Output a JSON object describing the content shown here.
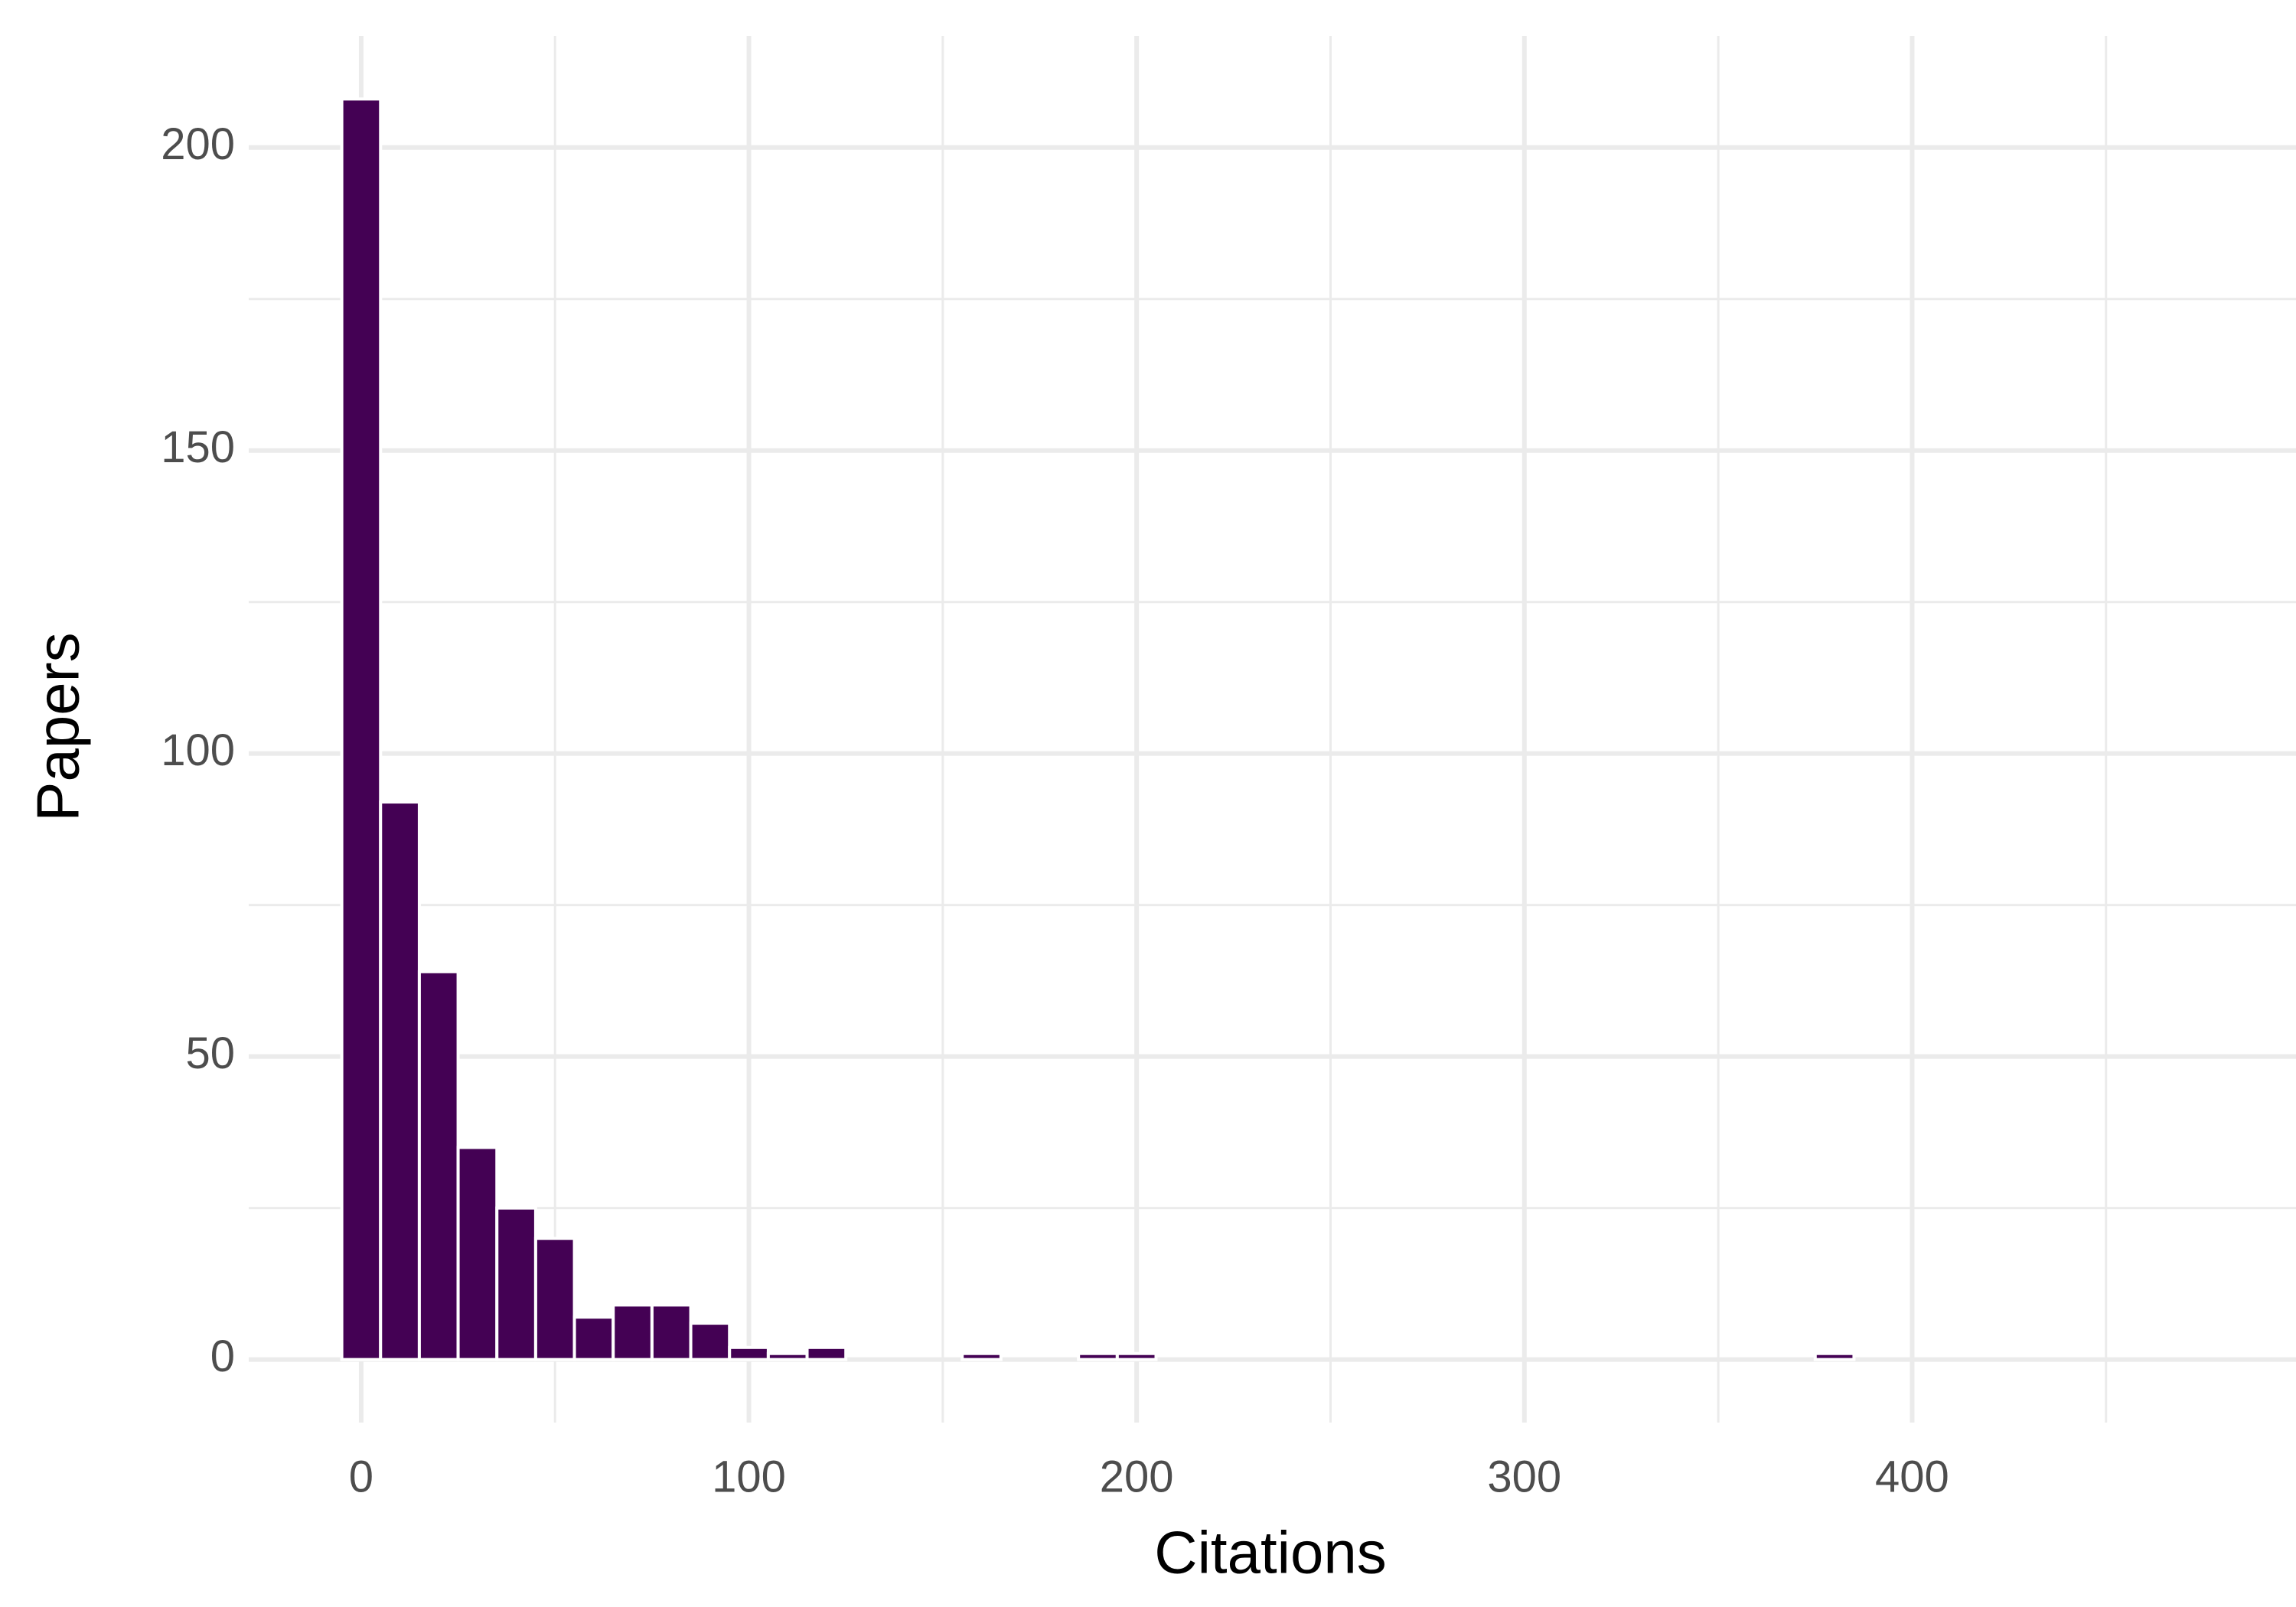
{
  "chart_data": {
    "type": "histogram",
    "x_label": "Citations",
    "y_label": "Papers",
    "bins": [
      -5,
      5,
      15,
      25,
      35,
      45,
      55,
      65,
      75,
      85,
      95,
      105,
      115,
      125,
      135,
      145,
      155,
      165,
      175,
      185,
      195,
      205,
      215,
      225,
      235,
      245,
      255,
      265,
      275,
      285,
      295,
      305,
      315,
      325,
      335,
      345,
      355,
      365,
      375,
      385,
      395,
      405,
      415,
      425,
      435,
      445,
      455,
      465,
      475
    ],
    "counts": [
      208,
      92,
      64,
      35,
      25,
      20,
      7,
      9,
      9,
      6,
      2,
      1,
      2,
      0,
      0,
      0,
      1,
      0,
      0,
      1,
      1,
      0,
      0,
      0,
      0,
      0,
      0,
      0,
      0,
      0,
      0,
      0,
      0,
      0,
      0,
      0,
      0,
      0,
      1,
      0,
      0,
      0,
      0,
      0,
      0,
      0,
      0,
      0
    ],
    "color": "#440154",
    "xlim": [
      -29,
      499
    ],
    "xticks": [
      0,
      100,
      200,
      300,
      400
    ],
    "xminor": [
      50,
      150,
      250,
      350,
      450
    ],
    "ylim": [
      -10.4,
      218.4
    ],
    "yticks": [
      0,
      50,
      100,
      150,
      200
    ],
    "yminor": [
      25,
      75,
      125,
      175
    ],
    "grid": true
  }
}
